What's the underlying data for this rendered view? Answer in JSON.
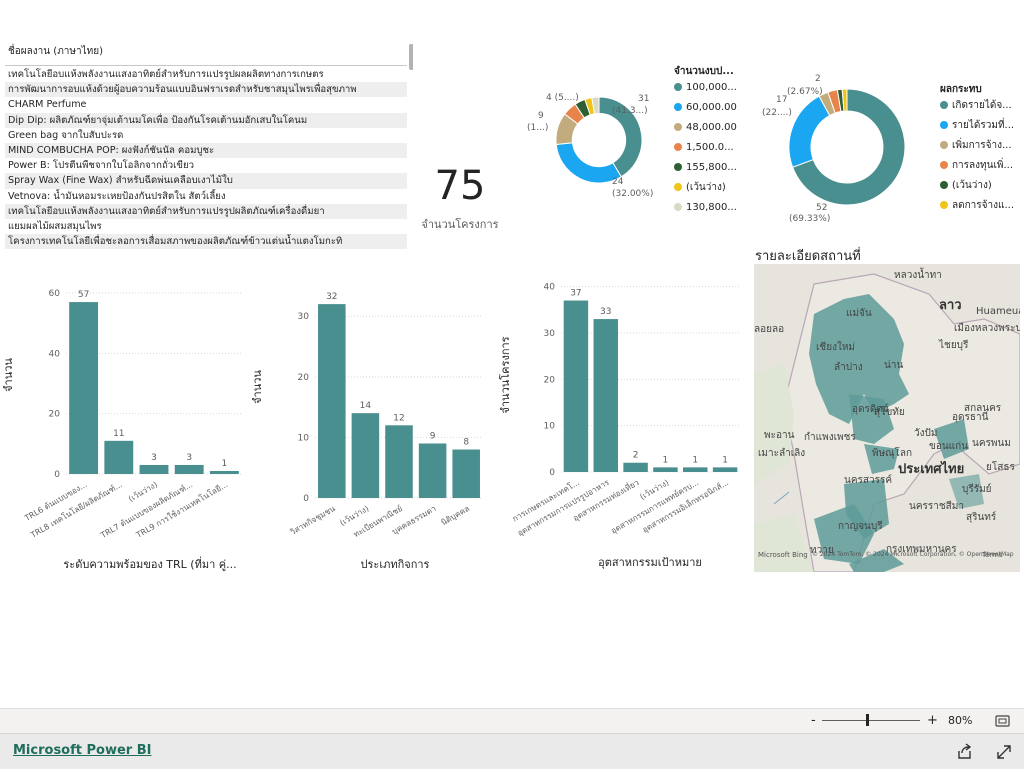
{
  "table": {
    "header": "ชื่อผลงาน (ภาษาไทย)",
    "rows": [
      "เทคโนโลยีอบแห้งพลังงานแสงอาทิตย์สำหรับการแปรรูปผลผลิตทางการเกษตร",
      "การพัฒนาการอบแห้งด้วยผู้อบความร้อนแบบอินฟราเรดสำหรับชาสมุนไพรเพื่อสุขภาพ",
      "CHARM Perfume",
      "Dip Dip: ผลิตภัณฑ์ยาจุ่มเต้านมโคเพื่อ ป้องกันโรคเต้านมอักเสบในโคนม",
      "Green bag จากใบสับปะรด",
      "MIND COMBUCHA POP: ผงฟังก์ชันนัล คอมบูชะ",
      "Power B: โปรตีนพืชจากใบโอลิกจากถั่วเขียว",
      "Spray Wax (Fine Wax) สำหรับฉีดพ่นเคลือบเงาไม้ใบ",
      "Vetnova: น้ำมันหอมระเหยป้องกันปรสิตใน สัตว์เลี้ยง",
      "เทคโนโลยีอบแห้งพลังงานแสงอาทิตย์สำหรับการแปรรูปผลิตภัณฑ์เครื่องดื่มยา",
      "แยมผลไม้ผสมสมุนไพร",
      "โครงการเทคโนโลยีเพื่อชะลอการเสื่อมสภาพของผลิตภัณฑ์ข้าวแต่นน้ำแตงโมกะทิ"
    ]
  },
  "card": {
    "value": "75",
    "label": "จำนวนโครงการ"
  },
  "donut1": {
    "legend_title": "จำนวนงบป...",
    "legend": [
      "100,000...",
      "60,000.00",
      "48,000.00",
      "1,500.0...",
      "155,800...",
      "(เว้นว่าง)",
      "130,800..."
    ],
    "labels": {
      "a": "31",
      "a2": "(41.3...)",
      "b": "24",
      "b2": "(32.00%)",
      "c": "9",
      "c2": "(1...)",
      "d": "4 (5....)"
    }
  },
  "donut2": {
    "legend_title": "ผลกระทบ",
    "legend": [
      "เกิดรายได้จ...",
      "รายได้รวมที่...",
      "เพิ่มการจ้าง...",
      "การลงทุนเพิ่...",
      "(เว้นว่าง)",
      "ลดการจ้างแ..."
    ],
    "labels": {
      "a": "52",
      "a2": "(69.33%)",
      "b": "17",
      "b2": "(22....)",
      "c": "2",
      "c2": "(2.67%)"
    }
  },
  "map": {
    "title": "รายละเอียดสถานที่",
    "labels": [
      "หลวงน้ำทา",
      "ลาว",
      "Huameuang",
      "เมืองหลวงพระบาง",
      "แม่จัน",
      "เชียงใหม่",
      "ลำปาง",
      "น่าน",
      "ไชยบุรี",
      "ลอยลอ",
      "อุตรดิตถ์",
      "สุโขทัย",
      "สกลนคร",
      "อุดรธานี",
      "พะอาน",
      "กำแพงเพชร",
      "วังปัม",
      "ขอนแก่น",
      "นครพนม",
      "เมาะลำเลิง",
      "พิษณุโลก",
      "ประเทศไทย",
      "ยโสธร",
      "นครสวรรค์",
      "บุรีรัมย์",
      "นครราชสีมา",
      "กาญจนบุรี",
      "ทวาย",
      "กรุงเทพมหานคร",
      "สุรินทร์"
    ],
    "attribution1": "© 2024 TomTom, © 2024 Microsoft Corporation, © OpenStreetMap",
    "attribution2": "Microsoft Bing",
    "terms": "Terms"
  },
  "chart_data": [
    {
      "type": "pie",
      "title": "จำนวนงบป...",
      "categories": [
        "100,000...",
        "60,000.00",
        "48,000.00",
        "1,500.0...",
        "155,800...",
        "(เว้นว่าง)",
        "130,800..."
      ],
      "values": [
        31,
        24,
        9,
        4,
        3,
        2,
        2
      ],
      "colors": [
        "#4a8f8f",
        "#1aa6f0",
        "#c2ab7c",
        "#e8844a",
        "#2e5e33",
        "#f0c419",
        "#d9d9c6"
      ],
      "hole": 0.62
    },
    {
      "type": "pie",
      "title": "ผลกระทบ",
      "categories": [
        "เกิดรายได้จ...",
        "รายได้รวมที่...",
        "เพิ่มการจ้าง...",
        "การลงทุนเพิ่...",
        "(เว้นว่าง)",
        "ลดการจ้างแ..."
      ],
      "values": [
        52,
        17,
        2,
        2,
        1,
        1
      ],
      "colors": [
        "#4a8f8f",
        "#1aa6f0",
        "#c2ab7c",
        "#e8844a",
        "#2e5e33",
        "#f0c419"
      ],
      "hole": 0.62
    },
    {
      "type": "bar",
      "xlabel": "ระดับความพร้อมของ TRL (ที่มา คู่...",
      "ylabel": "จำนวน",
      "ylim": [
        0,
        62
      ],
      "yticks": [
        0,
        20,
        40,
        60
      ],
      "categories": [
        "TRL6 ต้นแบบของ...",
        "TRL8 เทคโนโลยี/ผลิตภัณฑ์...",
        "(เว้นว่าง)",
        "TRL7 ต้นแบบของผลิตภัณฑ์...",
        "TRL9 การใช้งานเทคโนโลยี..."
      ],
      "values": [
        57,
        11,
        3,
        3,
        1
      ],
      "color": "#4a8f8f"
    },
    {
      "type": "bar",
      "xlabel": "ประเภทกิจการ",
      "ylabel": "จำนวน",
      "ylim": [
        0,
        34
      ],
      "yticks": [
        0,
        10,
        20,
        30
      ],
      "categories": [
        "วิสาหกิจชุมชน",
        "(เว้นว่าง)",
        "ทะเบียนพาณิชย์",
        "บุคคลธรรมดา",
        "นิติบุคคล"
      ],
      "values": [
        32,
        14,
        12,
        9,
        8
      ],
      "color": "#4a8f8f"
    },
    {
      "type": "bar",
      "xlabel": "อุตสาหกรรมเป้าหมาย",
      "ylabel": "จำนวนโครงการ",
      "ylim": [
        0,
        41
      ],
      "yticks": [
        0,
        10,
        20,
        30,
        40
      ],
      "categories": [
        "การเกษตรและเทคโ...",
        "อุตสาหกรรมการแปรรูปอาหาร",
        "อุตสาหกรรมท่องเที่ยว",
        "(เว้นว่าง)",
        "อุตสาหกรรมการแพทย์ครบ...",
        "อุตสาหกรรมอิเล็กทรอนิกส์..."
      ],
      "values": [
        37,
        33,
        2,
        1,
        1,
        1
      ],
      "color": "#4a8f8f"
    }
  ],
  "zoom": {
    "minus": "-",
    "plus": "+",
    "level": "80%",
    "value": 0.45
  },
  "footer": {
    "link": "Microsoft Power BI"
  }
}
